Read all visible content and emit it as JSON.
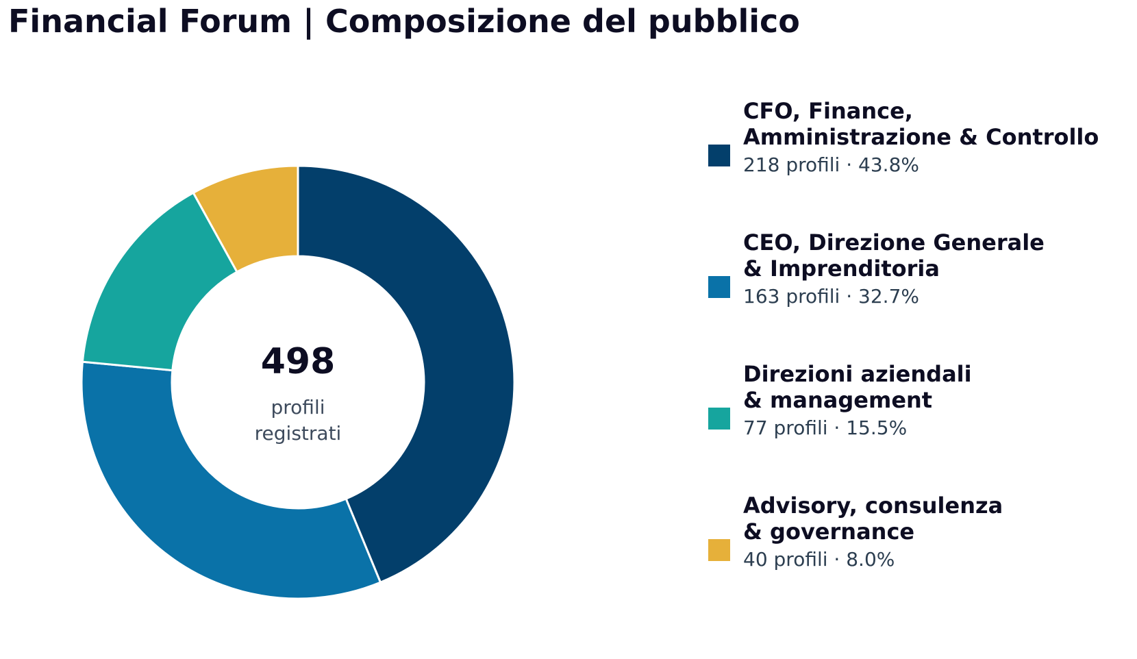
{
  "title": "Financial Forum | Composizione del pubblico",
  "chart_data": {
    "type": "pie",
    "variant": "donut",
    "title": "Financial Forum | Composizione del pubblico",
    "center": {
      "total": "498",
      "label_line1": "profili",
      "label_line2": "registrati"
    },
    "legend_placement": "right",
    "slices": [
      {
        "name_line1": "CFO, Finance,",
        "name_line2": "Amministrazione & Controllo",
        "value": 218,
        "percent": 43.8,
        "detail": "218 profili · 43.8%",
        "color": "#033f6b"
      },
      {
        "name_line1": "CEO, Direzione Generale",
        "name_line2": "& Imprenditoria",
        "value": 163,
        "percent": 32.7,
        "detail": "163 profili · 32.7%",
        "color": "#0a72a8"
      },
      {
        "name_line1": "Direzioni aziendali",
        "name_line2": "& management",
        "value": 77,
        "percent": 15.5,
        "detail": "77 profili · 15.5%",
        "color": "#16a59e"
      },
      {
        "name_line1": "Advisory, consulenza",
        "name_line2": "& governance",
        "value": 40,
        "percent": 8.0,
        "detail": "40 profili · 8.0%",
        "color": "#e6b03a"
      }
    ]
  }
}
